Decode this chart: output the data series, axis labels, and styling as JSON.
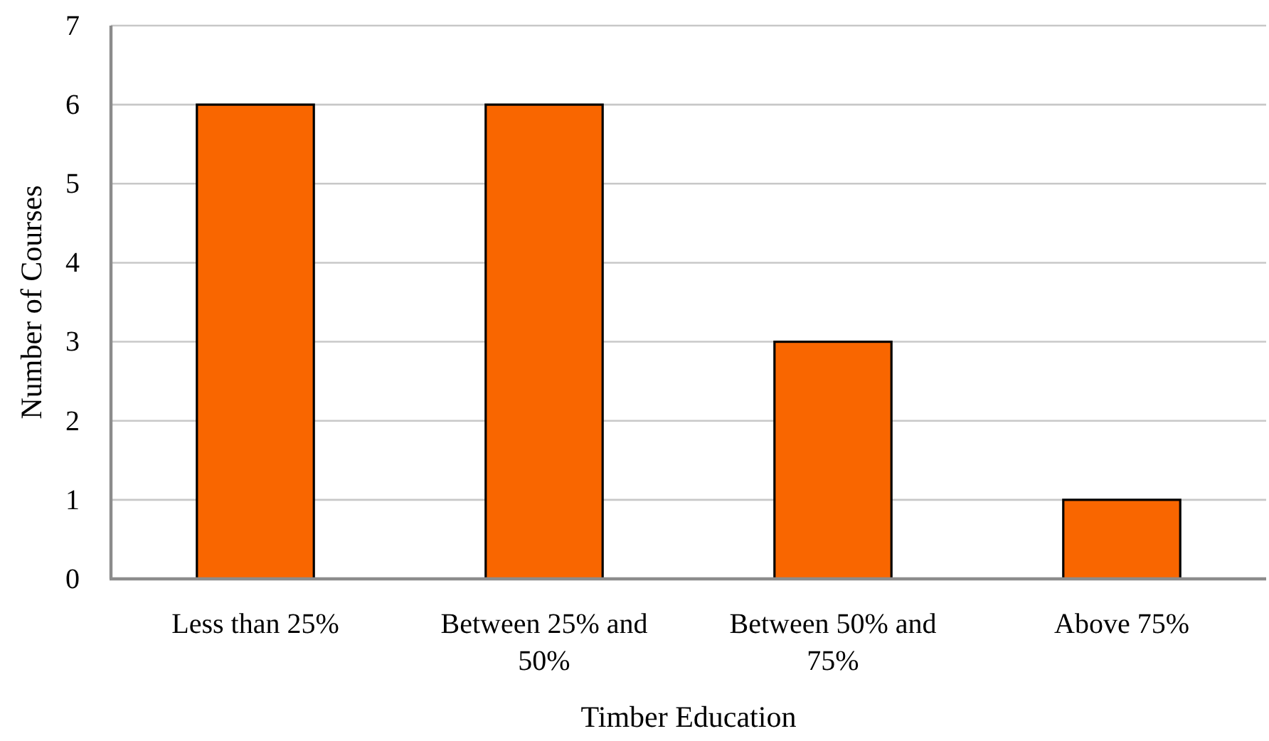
{
  "chart_data": {
    "type": "bar",
    "xlabel": "Timber Education",
    "ylabel": "Number of Courses",
    "categories": [
      "Less than 25%",
      "Between 25% and 50%",
      "Between 50% and 75%",
      "Above 75%"
    ],
    "values": [
      6,
      6,
      3,
      1
    ],
    "color": "#f96600",
    "ylim": [
      0,
      7
    ],
    "yticks": [
      0,
      1,
      2,
      3,
      4,
      5,
      6,
      7
    ],
    "grid": "y"
  }
}
